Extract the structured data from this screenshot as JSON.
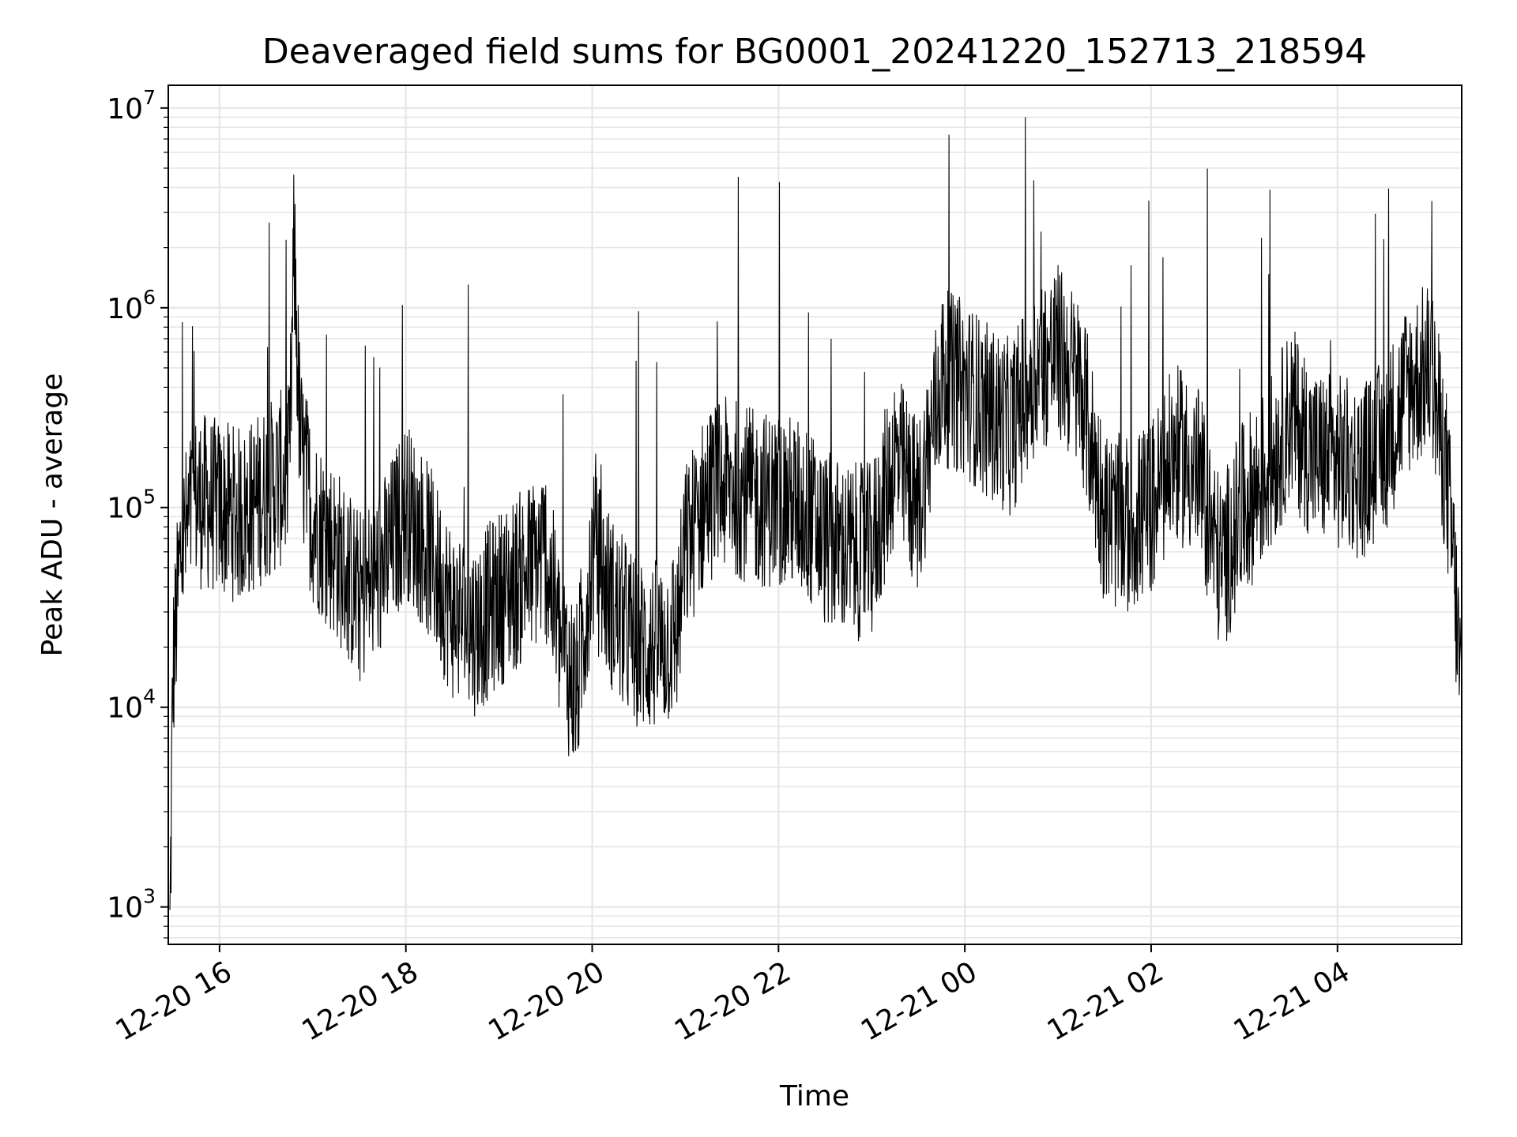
{
  "chart_data": {
    "type": "line",
    "title": "Deaveraged field sums for BG0001_20241220_152713_218594",
    "xlabel": "Time",
    "ylabel": "Peak ADU - average",
    "yscale": "log",
    "ylim": [
      650,
      13000000
    ],
    "xlim": [
      "2024-12-20 15:27",
      "2024-12-21 05:20"
    ],
    "grid": true,
    "line_color": "#000000",
    "grid_color": "#e6e6e6",
    "x_ticks": [
      {
        "value": "2024-12-20 16:00",
        "label": "12-20 16"
      },
      {
        "value": "2024-12-20 18:00",
        "label": "12-20 18"
      },
      {
        "value": "2024-12-20 20:00",
        "label": "12-20 20"
      },
      {
        "value": "2024-12-20 22:00",
        "label": "12-20 22"
      },
      {
        "value": "2024-12-21 00:00",
        "label": "12-21 00"
      },
      {
        "value": "2024-12-21 02:00",
        "label": "12-21 02"
      },
      {
        "value": "2024-12-21 04:00",
        "label": "12-21 04"
      }
    ],
    "y_ticks": [
      {
        "value": 1000,
        "base": "10",
        "exp": "3"
      },
      {
        "value": 10000,
        "base": "10",
        "exp": "4"
      },
      {
        "value": 100000,
        "base": "10",
        "exp": "5"
      },
      {
        "value": 1000000,
        "base": "10",
        "exp": "6"
      },
      {
        "value": 10000000,
        "base": "10",
        "exp": "7"
      }
    ],
    "series": [
      {
        "values_description_note": "",
        "x": [
          "2024-12-20 15:28",
          "2024-12-20 15:30",
          "2024-12-20 15:35",
          "2024-12-20 15:45",
          "2024-12-20 16:00",
          "2024-12-20 16:15",
          "2024-12-20 16:30",
          "2024-12-20 16:45",
          "2024-12-20 16:48",
          "2024-12-20 16:52",
          "2024-12-20 17:00",
          "2024-12-20 17:15",
          "2024-12-20 17:30",
          "2024-12-20 17:45",
          "2024-12-20 18:00",
          "2024-12-20 18:15",
          "2024-12-20 18:30",
          "2024-12-20 18:45",
          "2024-12-20 19:00",
          "2024-12-20 19:15",
          "2024-12-20 19:30",
          "2024-12-20 19:40",
          "2024-12-20 19:50",
          "2024-12-20 20:00",
          "2024-12-20 20:15",
          "2024-12-20 20:30",
          "2024-12-20 20:45",
          "2024-12-20 20:55",
          "2024-12-20 21:00",
          "2024-12-20 21:15",
          "2024-12-20 21:30",
          "2024-12-20 21:45",
          "2024-12-20 22:00",
          "2024-12-20 22:15",
          "2024-12-20 22:30",
          "2024-12-20 22:45",
          "2024-12-20 23:00",
          "2024-12-20 23:15",
          "2024-12-20 23:30",
          "2024-12-20 23:45",
          "2024-12-21 00:00",
          "2024-12-21 00:15",
          "2024-12-21 00:30",
          "2024-12-21 00:45",
          "2024-12-21 01:00",
          "2024-12-21 01:15",
          "2024-12-21 01:30",
          "2024-12-21 01:45",
          "2024-12-21 02:00",
          "2024-12-21 02:15",
          "2024-12-21 02:30",
          "2024-12-21 02:45",
          "2024-12-21 03:00",
          "2024-12-21 03:15",
          "2024-12-21 03:30",
          "2024-12-21 03:45",
          "2024-12-21 04:00",
          "2024-12-21 04:15",
          "2024-12-21 04:30",
          "2024-12-21 04:45",
          "2024-12-21 05:00",
          "2024-12-21 05:10",
          "2024-12-21 05:15",
          "2024-12-21 05:20"
        ],
        "y": [
          700,
          15000,
          60000,
          110000,
          100000,
          90000,
          120000,
          150000,
          2000000,
          200000,
          90000,
          60000,
          35000,
          50000,
          100000,
          60000,
          30000,
          25000,
          35000,
          45000,
          60000,
          20000,
          12000,
          60000,
          30000,
          20000,
          20000,
          25000,
          60000,
          120000,
          130000,
          110000,
          110000,
          100000,
          70000,
          60000,
          60000,
          180000,
          100000,
          450000,
          400000,
          300000,
          250000,
          500000,
          600000,
          400000,
          90000,
          80000,
          100000,
          190000,
          150000,
          50000,
          100000,
          150000,
          300000,
          180000,
          170000,
          150000,
          200000,
          400000,
          500000,
          150000,
          50000,
          10000
        ]
      }
    ]
  }
}
